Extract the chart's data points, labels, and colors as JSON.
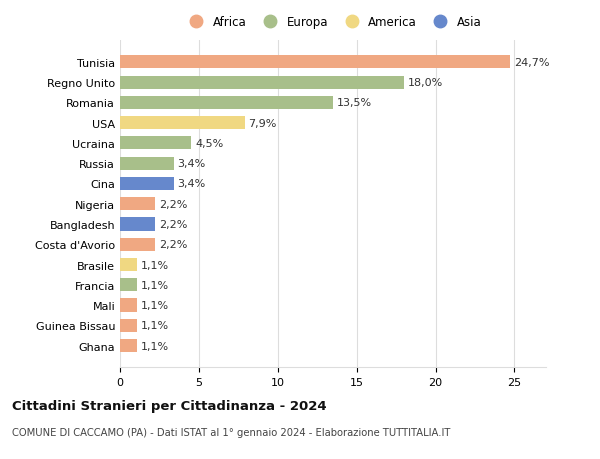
{
  "categories": [
    "Tunisia",
    "Regno Unito",
    "Romania",
    "USA",
    "Ucraina",
    "Russia",
    "Cina",
    "Nigeria",
    "Bangladesh",
    "Costa d'Avorio",
    "Brasile",
    "Francia",
    "Mali",
    "Guinea Bissau",
    "Ghana"
  ],
  "values": [
    24.7,
    18.0,
    13.5,
    7.9,
    4.5,
    3.4,
    3.4,
    2.2,
    2.2,
    2.2,
    1.1,
    1.1,
    1.1,
    1.1,
    1.1
  ],
  "labels": [
    "24,7%",
    "18,0%",
    "13,5%",
    "7,9%",
    "4,5%",
    "3,4%",
    "3,4%",
    "2,2%",
    "2,2%",
    "2,2%",
    "1,1%",
    "1,1%",
    "1,1%",
    "1,1%",
    "1,1%"
  ],
  "continent": [
    "Africa",
    "Europa",
    "Europa",
    "America",
    "Europa",
    "Europa",
    "Asia",
    "Africa",
    "Asia",
    "Africa",
    "America",
    "Europa",
    "Africa",
    "Africa",
    "Africa"
  ],
  "colors": {
    "Africa": "#F0A882",
    "Europa": "#A8BF8A",
    "America": "#F0D882",
    "Asia": "#6688CC"
  },
  "xlim": [
    0,
    27
  ],
  "xticks": [
    0,
    5,
    10,
    15,
    20,
    25
  ],
  "title": "Cittadini Stranieri per Cittadinanza - 2024",
  "subtitle": "COMUNE DI CACCAMO (PA) - Dati ISTAT al 1° gennaio 2024 - Elaborazione TUTTITALIA.IT",
  "background_color": "#ffffff",
  "grid_color": "#dddddd",
  "bar_height": 0.65,
  "legend_order": [
    "Africa",
    "Europa",
    "America",
    "Asia"
  ]
}
